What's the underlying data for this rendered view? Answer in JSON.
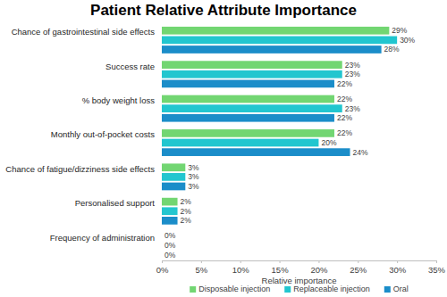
{
  "chart_data": {
    "type": "bar",
    "title": "Patient Relative Attribute Importance",
    "orientation": "horizontal",
    "categories": [
      "Chance of gastrointestinal side effects",
      "Success rate",
      "% body weight loss",
      "Monthly out-of-pocket costs",
      "Chance of fatigue/dizziness side effects",
      "Personalised support",
      "Frequency of administration"
    ],
    "series": [
      {
        "name": "Disposable injection",
        "color": "#72d672",
        "values": [
          29,
          23,
          22,
          22,
          3,
          2,
          0
        ],
        "value_labels": [
          "29%",
          "23%",
          "22%",
          "22%",
          "3%",
          "2%",
          "0%"
        ]
      },
      {
        "name": "Replaceable injection",
        "color": "#22c6cf",
        "values": [
          30,
          23,
          23,
          20,
          3,
          2,
          0
        ],
        "value_labels": [
          "30%",
          "23%",
          "23%",
          "20%",
          "3%",
          "2%",
          "0%"
        ]
      },
      {
        "name": "Oral",
        "color": "#1b8dc9",
        "values": [
          28,
          22,
          22,
          24,
          3,
          2,
          0
        ],
        "value_labels": [
          "28%",
          "22%",
          "22%",
          "24%",
          "3%",
          "2%",
          "0%"
        ]
      }
    ],
    "xlabel": "Relative importance",
    "xlim": [
      0,
      35
    ],
    "xticks": [
      {
        "value": 0,
        "label": "0%"
      },
      {
        "value": 5,
        "label": "5%"
      },
      {
        "value": 10,
        "label": "10%"
      },
      {
        "value": 15,
        "label": "15%"
      },
      {
        "value": 20,
        "label": "20%"
      },
      {
        "value": 25,
        "label": "25%"
      },
      {
        "value": 30,
        "label": "30%"
      },
      {
        "value": 35,
        "label": "35%"
      }
    ],
    "data_labels": true,
    "legend": "bottom",
    "grid": false
  }
}
